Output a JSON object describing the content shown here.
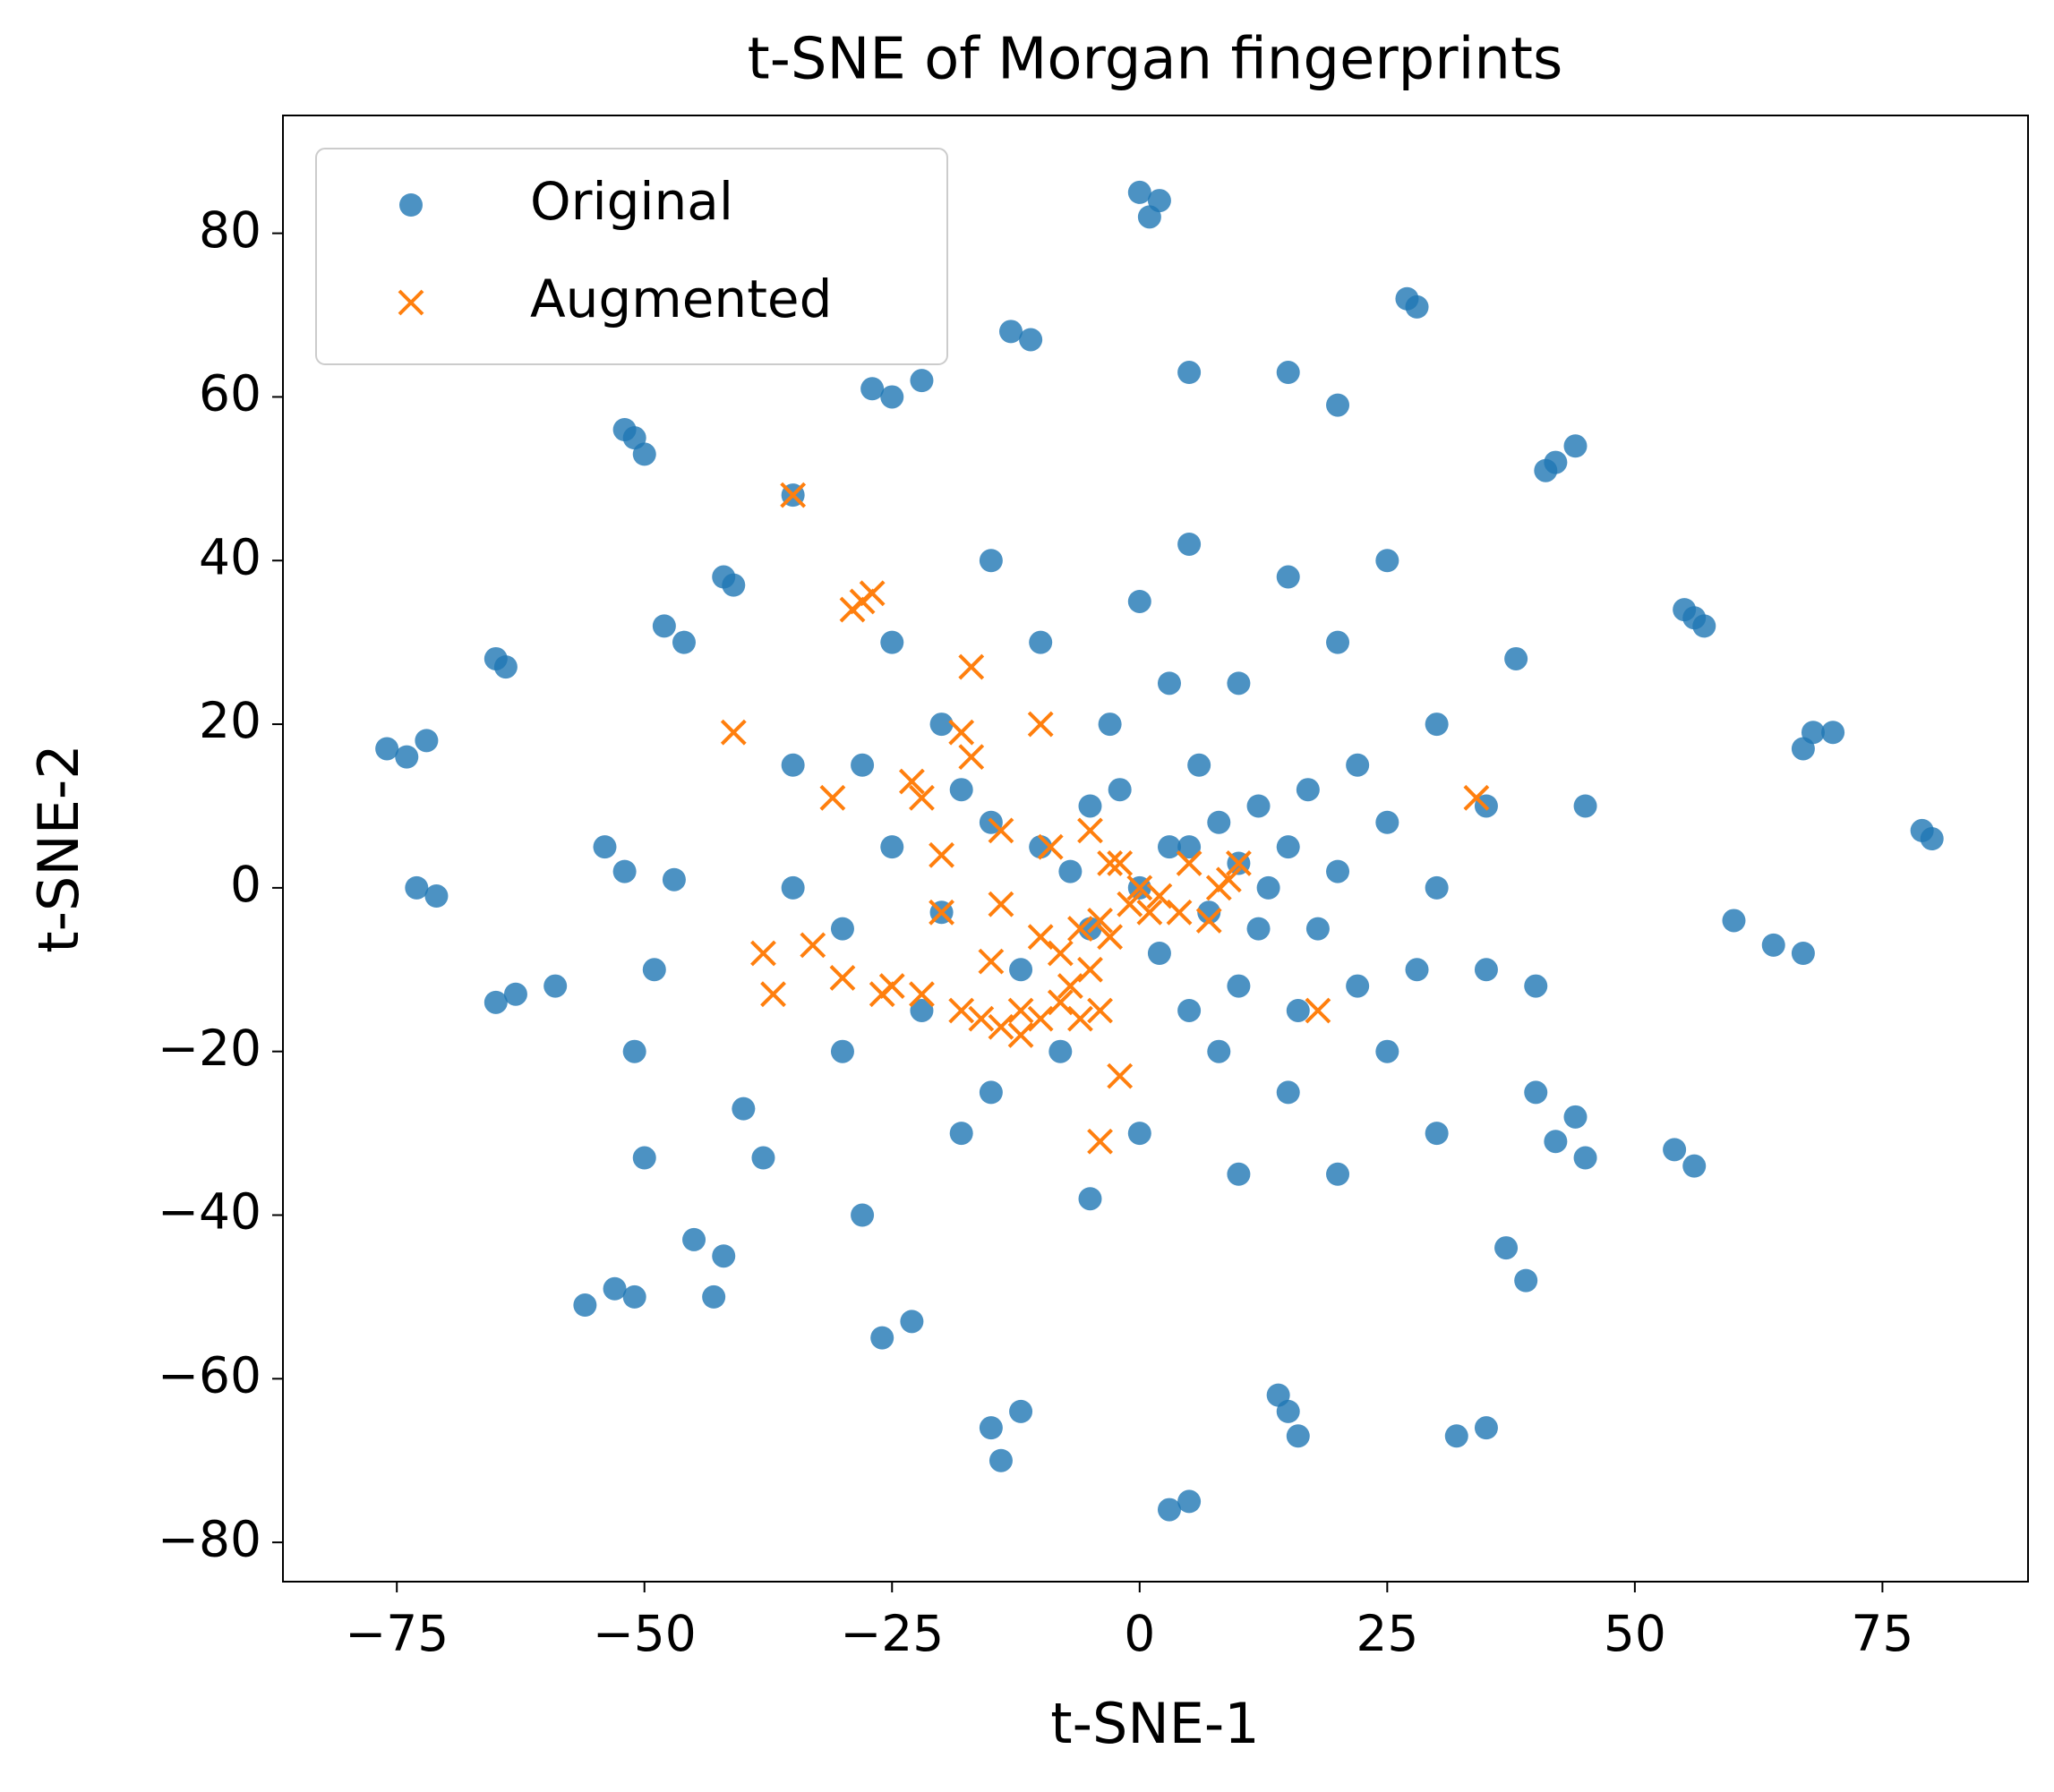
{
  "chart_data": {
    "type": "scatter",
    "title": "t-SNE of Morgan fingerprints",
    "x_label": "t-SNE-1",
    "y_label": "t-SNE-2",
    "xlim": [
      -86.5,
      89.7
    ],
    "ylim": [
      -84.8,
      94.4
    ],
    "xticks": [
      {
        "value": -75,
        "label": "−75"
      },
      {
        "value": -50,
        "label": "−50"
      },
      {
        "value": -25,
        "label": "−25"
      },
      0,
      25,
      50,
      75
    ],
    "yticks": [
      {
        "value": -80,
        "label": "−80"
      },
      {
        "value": -60,
        "label": "−60"
      },
      {
        "value": -40,
        "label": "−40"
      },
      {
        "value": -20,
        "label": "−20"
      },
      0,
      20,
      40,
      60,
      80
    ],
    "grid": false,
    "legend_position": "upper left",
    "series": [
      {
        "name": "Original",
        "color": "#1f77b4",
        "marker": "o",
        "x": [
          -76,
          -74,
          -72,
          -73,
          -71,
          -65,
          -64,
          -51,
          -50,
          -52,
          -27,
          -25,
          -22,
          -13,
          -11,
          0,
          2,
          1,
          27,
          28,
          5,
          15,
          20,
          42,
          44,
          41,
          56,
          55,
          57,
          68,
          70,
          67,
          80,
          79,
          60,
          64,
          67,
          44,
          42,
          45,
          40,
          54,
          56,
          -65,
          -63,
          -59,
          -56,
          -53,
          -51,
          -45,
          -42,
          -43,
          -23,
          -26,
          -15,
          -14,
          -12,
          3,
          5,
          15,
          16,
          14,
          32,
          35,
          37,
          39,
          -42,
          -41,
          -48,
          -46,
          -47,
          -52,
          -54,
          -49,
          -51,
          -35,
          -40,
          -38,
          -28,
          -50,
          0,
          5,
          10,
          15,
          20,
          -5,
          -10,
          -15,
          -20,
          5,
          8,
          10,
          12,
          18,
          25,
          22,
          -3,
          3,
          10,
          -8,
          -15,
          0,
          15,
          25,
          30,
          28,
          -25,
          -30,
          -28,
          -20,
          -10,
          0,
          15,
          20,
          30,
          35,
          35,
          30,
          20,
          10,
          -5,
          -18,
          -30,
          -35,
          -35,
          -25,
          -15,
          5,
          25,
          38,
          45,
          40,
          -5,
          2,
          8,
          -12,
          13,
          17,
          -7,
          6,
          -2,
          12,
          22,
          -18,
          7,
          -22,
          3,
          16
        ],
        "values": [
          17,
          16,
          18,
          0,
          -1,
          28,
          27,
          55,
          53,
          56,
          61,
          60,
          62,
          68,
          67,
          85,
          84,
          82,
          72,
          71,
          63,
          63,
          59,
          52,
          54,
          51,
          33,
          34,
          32,
          19,
          19,
          17,
          6,
          7,
          -4,
          -7,
          -8,
          -28,
          -31,
          -33,
          -25,
          -32,
          -34,
          -14,
          -13,
          -12,
          -51,
          -49,
          -50,
          -43,
          -45,
          -50,
          -53,
          -55,
          -66,
          -70,
          -64,
          -76,
          -75,
          -64,
          -67,
          -62,
          -67,
          -66,
          -44,
          -48,
          38,
          37,
          32,
          30,
          1,
          2,
          5,
          -10,
          -20,
          48,
          -27,
          -33,
          -40,
          -33,
          0,
          5,
          3,
          5,
          2,
          10,
          5,
          8,
          -3,
          -15,
          -20,
          -12,
          10,
          -5,
          8,
          15,
          20,
          25,
          25,
          -20,
          -25,
          -30,
          -25,
          -20,
          0,
          -10,
          5,
          -5,
          15,
          20,
          30,
          35,
          38,
          30,
          20,
          10,
          -10,
          -30,
          -35,
          -35,
          -38,
          -30,
          -20,
          0,
          15,
          30,
          40,
          42,
          40,
          28,
          10,
          -12,
          -5,
          -8,
          8,
          -10,
          0,
          12,
          2,
          15,
          12,
          -5,
          -12,
          12,
          -3,
          -15,
          5,
          -15
        ]
      },
      {
        "name": "Augmented",
        "color": "#ff7f0e",
        "marker": "x",
        "x": [
          -35,
          -28,
          -27,
          -29,
          -17,
          -10,
          -41,
          -18,
          -17,
          -31,
          -23,
          -22,
          34,
          -14,
          -5,
          -9,
          -20,
          -3,
          -2,
          5,
          10,
          9,
          8,
          0,
          -1,
          2,
          1,
          -4,
          -6,
          -3,
          -8,
          -14,
          -20,
          -38,
          -33,
          -37,
          -30,
          -26,
          -25,
          -22,
          -18,
          -16,
          -14,
          -12,
          -10,
          -8,
          -7,
          -6,
          -12,
          -4,
          -2,
          -4,
          18,
          7,
          -15,
          -10,
          -5,
          4
        ],
        "values": [
          48,
          35,
          36,
          34,
          27,
          20,
          19,
          19,
          16,
          11,
          13,
          11,
          11,
          7,
          7,
          5,
          4,
          3,
          3,
          3,
          3,
          1,
          0,
          0,
          -2,
          -1,
          -3,
          -4,
          -5,
          -6,
          -8,
          -2,
          -3,
          -8,
          -7,
          -13,
          -11,
          -13,
          -12,
          -13,
          -15,
          -16,
          -17,
          -15,
          -16,
          -14,
          -12,
          -16,
          -18,
          -15,
          -23,
          -31,
          -15,
          -4,
          -9,
          -6,
          -10,
          -3
        ]
      }
    ]
  }
}
